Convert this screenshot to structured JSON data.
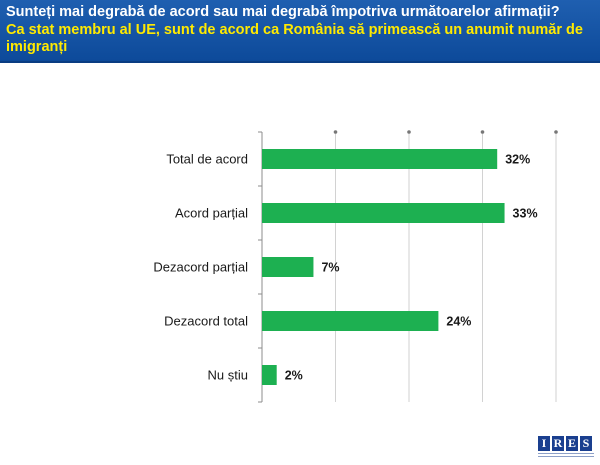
{
  "header": {
    "question": "Sunteți mai degrabă de acord sau mai degrabă împotriva următoarelor afirmații?",
    "statement": "Ca stat membru al UE, sunt de acord ca România să primească un anumit număr de imigranți"
  },
  "logo": {
    "letters": [
      "I",
      "R",
      "E",
      "S"
    ]
  },
  "colors": {
    "header_bg": "#0d4a9a",
    "statement_text": "#ffea00",
    "bar": "#1db051"
  },
  "chart_data": {
    "type": "bar",
    "orientation": "horizontal",
    "categories": [
      "Total de acord",
      "Acord parțial",
      "Dezacord parțial",
      "Dezacord total",
      "Nu știu"
    ],
    "values": [
      32,
      33,
      7,
      24,
      2
    ],
    "value_labels": [
      "32%",
      "33%",
      "7%",
      "24%",
      "2%"
    ],
    "xlim": [
      0,
      40
    ],
    "grid": true,
    "legend": "none"
  }
}
